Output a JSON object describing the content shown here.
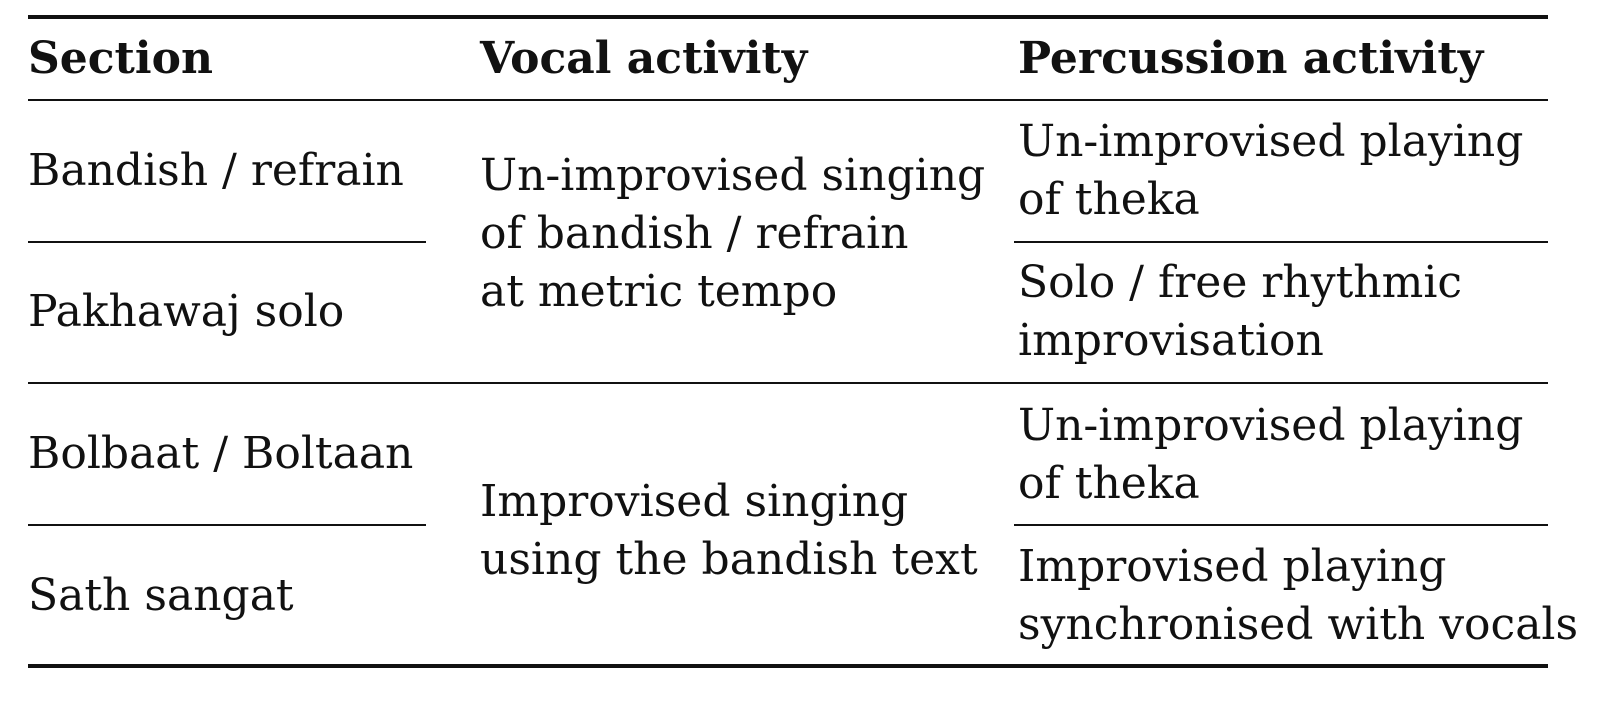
{
  "table": {
    "headers": {
      "section": "Section",
      "vocal": "Vocal activity",
      "percussion": "Percussion activity"
    },
    "groups": [
      {
        "vocal": "Un-improvised singing\nof bandish / refrain\nat metric tempo",
        "rows": [
          {
            "section": "Bandish / refrain",
            "percussion": "Un-improvised playing\nof theka"
          },
          {
            "section": "Pakhawaj solo",
            "percussion": "Solo / free rhythmic\nimprovisation"
          }
        ]
      },
      {
        "vocal": "Improvised singing\nusing the bandish text",
        "rows": [
          {
            "section": "Bolbaat / Boltaan",
            "percussion": "Un-improvised playing\nof theka"
          },
          {
            "section": "Sath sangat",
            "percussion": "Improvised playing\nsynchronised with vocals"
          }
        ]
      }
    ]
  }
}
